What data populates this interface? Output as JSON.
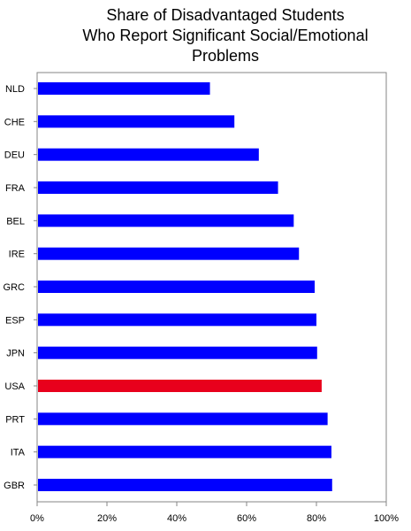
{
  "chart_data": {
    "type": "bar",
    "orientation": "horizontal",
    "title_lines": [
      "Share of Disadvantaged Students",
      "Who Report Significant Social/Emotional",
      "Problems"
    ],
    "categories": [
      "NLD",
      "CHE",
      "DEU",
      "FRA",
      "BEL",
      "IRE",
      "GRC",
      "ESP",
      "JPN",
      "USA",
      "PRT",
      "ITA",
      "GBR"
    ],
    "values": [
      0.495,
      0.565,
      0.635,
      0.69,
      0.735,
      0.75,
      0.795,
      0.8,
      0.802,
      0.815,
      0.832,
      0.843,
      0.845
    ],
    "highlight_category": "USA",
    "bar_color": "#0000ff",
    "highlight_color": "#e8001c",
    "xlim": [
      0,
      1
    ],
    "x_ticks": [
      0,
      0.2,
      0.4,
      0.6,
      0.8,
      1.0
    ],
    "x_tick_labels": [
      "0%",
      "20%",
      "40%",
      "60%",
      "80%",
      "100%"
    ],
    "grid": false,
    "legend": "none"
  }
}
